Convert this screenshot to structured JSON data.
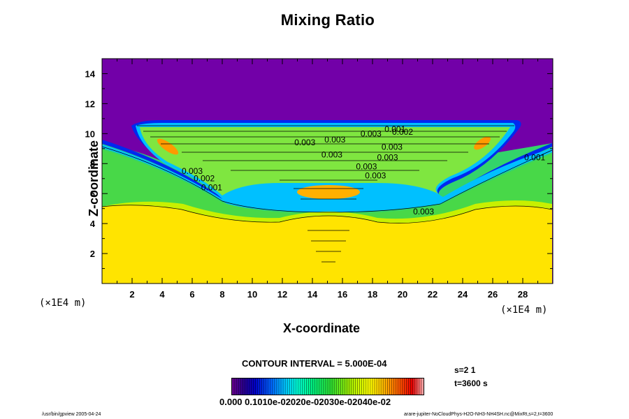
{
  "chart_data": {
    "type": "heatmap",
    "title": "Mixing Ratio",
    "xlabel": "X-coordinate",
    "ylabel": "Z-coordinate",
    "x_unit_label": "(×1E4 m)",
    "z_unit_label": "(×1E4 m)",
    "xlim": [
      0,
      30
    ],
    "ylim": [
      0,
      15
    ],
    "xticks": [
      "2",
      "4",
      "6",
      "8",
      "10",
      "12",
      "14",
      "16",
      "18",
      "20",
      "22",
      "24",
      "26",
      "28"
    ],
    "yticks": [
      "2",
      "4",
      "6",
      "8",
      "10",
      "12",
      "14"
    ],
    "contour_labels": [
      {
        "text": "0.003",
        "x": 13.5,
        "z": 9.4
      },
      {
        "text": "0.003",
        "x": 15.5,
        "z": 9.6
      },
      {
        "text": "0.003",
        "x": 17.9,
        "z": 10.0
      },
      {
        "text": "0.001",
        "x": 19.5,
        "z": 10.3
      },
      {
        "text": "0.002",
        "x": 20.0,
        "z": 10.1
      },
      {
        "text": "0.003",
        "x": 15.3,
        "z": 8.6
      },
      {
        "text": "0.003",
        "x": 19.3,
        "z": 9.1
      },
      {
        "text": "0.003",
        "x": 19.0,
        "z": 8.4
      },
      {
        "text": "0.003",
        "x": 17.6,
        "z": 7.8
      },
      {
        "text": "0.003",
        "x": 18.2,
        "z": 7.2
      },
      {
        "text": "0.003",
        "x": 6.0,
        "z": 7.5
      },
      {
        "text": "0.002",
        "x": 6.8,
        "z": 7.0
      },
      {
        "text": "0.001",
        "x": 7.3,
        "z": 6.4
      },
      {
        "text": "0.003",
        "x": 21.4,
        "z": 4.8
      },
      {
        "text": "0.001",
        "x": 28.8,
        "z": 8.4
      }
    ],
    "contour_interval": "CONTOUR INTERVAL = 5.000E-04",
    "colorbar": {
      "min": 0.0,
      "max": 0.0045,
      "tick_text": "0.000 0.1010e-02020e-02030e-02040e-02"
    },
    "grid": false,
    "legend": "bottom-center"
  },
  "run_info": {
    "line1": "s=2 1",
    "line2": "t=3600 s"
  },
  "footer": {
    "left": "/usr/bin/gpview 2005-04-24",
    "right": "arare-jupiter-NoCloudPhys-H2O-NH3-NH4SH.nc@MixRt,s=2,t=3600"
  },
  "colors": {
    "top_purple": "#7200a8",
    "bottom_yellow": "#ffe400",
    "green": "#3fe23c",
    "blue": "#0030ff"
  }
}
